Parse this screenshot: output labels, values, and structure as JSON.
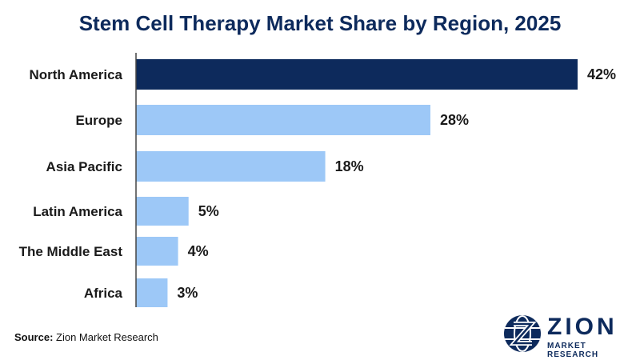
{
  "chart_data": {
    "type": "bar",
    "orientation": "horizontal",
    "title": "Stem Cell Therapy Market Share by Region, 2025",
    "categories": [
      "North America",
      "Europe",
      "Asia Pacific",
      "Latin America",
      "The Middle East",
      "Africa"
    ],
    "values": [
      42,
      28,
      18,
      5,
      4,
      3
    ],
    "value_labels": [
      "42%",
      "28%",
      "18%",
      "5%",
      "4%",
      "3%"
    ],
    "unit": "%",
    "xlim": [
      0,
      42
    ],
    "highlight_index": 0,
    "colors": {
      "highlight": "#0d2a5c",
      "bar": "#9dc8f7",
      "axis": "#444444"
    }
  },
  "source": {
    "label": "Source:",
    "text": "Zion Market Research"
  },
  "logo": {
    "wordmark": "ZION",
    "tagline": "MARKET RESEARCH",
    "icon": "globe-z-icon"
  }
}
